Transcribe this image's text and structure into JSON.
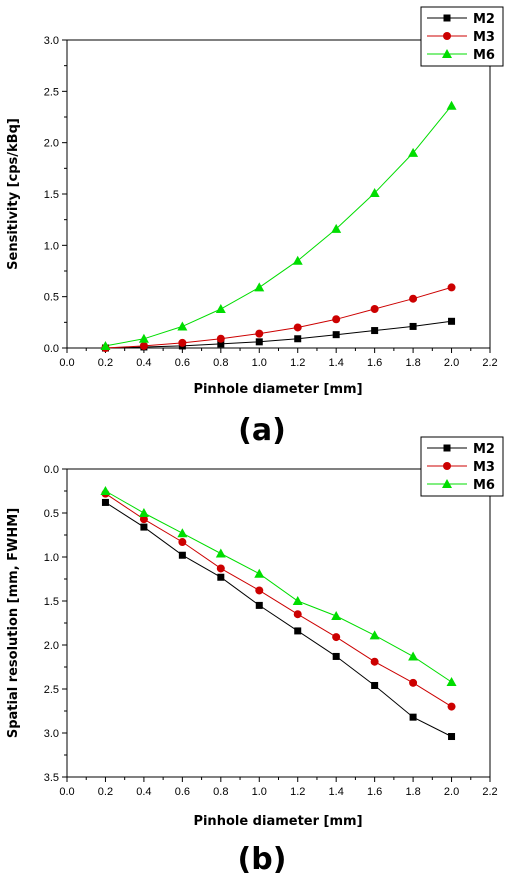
{
  "chart_data": [
    {
      "type": "line",
      "panel_label": "(a)",
      "xlabel": "Pinhole diameter [mm]",
      "ylabel": "Sensitivity [cps/kBq]",
      "xlim": [
        0.0,
        2.2
      ],
      "ylim": [
        0.0,
        3.0
      ],
      "x_ticks": [
        "0.0",
        "0.2",
        "0.4",
        "0.6",
        "0.8",
        "1.0",
        "1.2",
        "1.4",
        "1.6",
        "1.8",
        "2.0",
        "2.2"
      ],
      "y_ticks": [
        "0.0",
        "0.5",
        "1.0",
        "1.5",
        "2.0",
        "2.5",
        "3.0"
      ],
      "y_inverted": false,
      "legend_position": "top-right",
      "grid": false,
      "x": [
        0.2,
        0.4,
        0.6,
        0.8,
        1.0,
        1.2,
        1.4,
        1.6,
        1.8,
        2.0
      ],
      "series": [
        {
          "name": "M2",
          "color": "#000000",
          "marker": "square",
          "values": [
            0.0,
            0.01,
            0.02,
            0.04,
            0.06,
            0.09,
            0.13,
            0.17,
            0.21,
            0.26
          ]
        },
        {
          "name": "M3",
          "color": "#cc0000",
          "marker": "circle",
          "values": [
            0.0,
            0.02,
            0.05,
            0.09,
            0.14,
            0.2,
            0.28,
            0.38,
            0.48,
            0.59
          ]
        },
        {
          "name": "M6",
          "color": "#00dd00",
          "marker": "triangle",
          "values": [
            0.02,
            0.09,
            0.21,
            0.38,
            0.59,
            0.85,
            1.16,
            1.51,
            1.9,
            2.36
          ]
        }
      ]
    },
    {
      "type": "line",
      "panel_label": "(b)",
      "xlabel": "Pinhole diameter [mm]",
      "ylabel": "Spatial resolution [mm, FWHM]",
      "xlim": [
        0.0,
        2.2
      ],
      "ylim": [
        0.0,
        3.5
      ],
      "x_ticks": [
        "0.0",
        "0.2",
        "0.4",
        "0.6",
        "0.8",
        "1.0",
        "1.2",
        "1.4",
        "1.6",
        "1.8",
        "2.0",
        "2.2"
      ],
      "y_ticks": [
        "0.0",
        "0.5",
        "1.0",
        "1.5",
        "2.0",
        "2.5",
        "3.0",
        "3.5"
      ],
      "y_inverted": true,
      "legend_position": "top-right",
      "grid": false,
      "x": [
        0.2,
        0.4,
        0.6,
        0.8,
        1.0,
        1.2,
        1.4,
        1.6,
        1.8,
        2.0
      ],
      "series": [
        {
          "name": "M2",
          "color": "#000000",
          "marker": "square",
          "values": [
            0.38,
            0.66,
            0.98,
            1.23,
            1.55,
            1.84,
            2.13,
            2.46,
            2.82,
            3.04
          ]
        },
        {
          "name": "M3",
          "color": "#cc0000",
          "marker": "circle",
          "values": [
            0.28,
            0.57,
            0.83,
            1.13,
            1.38,
            1.65,
            1.91,
            2.19,
            2.43,
            2.7
          ]
        },
        {
          "name": "M6",
          "color": "#00dd00",
          "marker": "triangle",
          "values": [
            0.25,
            0.5,
            0.73,
            0.96,
            1.19,
            1.5,
            1.67,
            1.89,
            2.13,
            2.42
          ]
        }
      ]
    }
  ]
}
